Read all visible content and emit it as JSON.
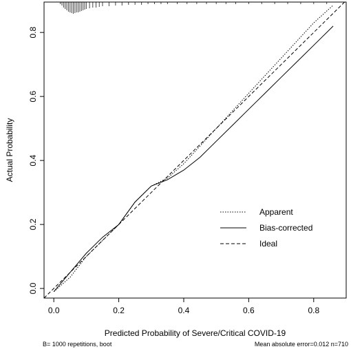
{
  "chart_data": {
    "type": "line",
    "xlabel": "Predicted Probability of Severe/Critical COVID-19",
    "ylabel": "Actual Probability",
    "xlim": [
      -0.03,
      0.9
    ],
    "ylim": [
      -0.03,
      0.895
    ],
    "x_ticks": [
      0.0,
      0.2,
      0.4,
      0.6,
      0.8
    ],
    "x_tick_labels": [
      "0.0",
      "0.2",
      "0.4",
      "0.6",
      "0.8"
    ],
    "y_ticks": [
      0.0,
      0.2,
      0.4,
      0.6,
      0.8
    ],
    "y_tick_labels": [
      "0.0",
      "0.2",
      "0.4",
      "0.6",
      "0.8"
    ],
    "legend_position": "bottom-right",
    "series": [
      {
        "name": "Apparent",
        "style": "dotted",
        "x": [
          0.0,
          0.05,
          0.1,
          0.15,
          0.2,
          0.25,
          0.3,
          0.35,
          0.4,
          0.45,
          0.5,
          0.55,
          0.6,
          0.65,
          0.7,
          0.75,
          0.8,
          0.86
        ],
        "y": [
          -0.01,
          0.035,
          0.1,
          0.15,
          0.2,
          0.27,
          0.32,
          0.345,
          0.39,
          0.445,
          0.5,
          0.555,
          0.61,
          0.665,
          0.72,
          0.775,
          0.83,
          0.885
        ]
      },
      {
        "name": "Bias-corrected",
        "style": "solid",
        "x": [
          0.0,
          0.05,
          0.1,
          0.15,
          0.2,
          0.25,
          0.3,
          0.35,
          0.4,
          0.45,
          0.5,
          0.55,
          0.6,
          0.65,
          0.7,
          0.75,
          0.8,
          0.86
        ],
        "y": [
          -0.01,
          0.05,
          0.11,
          0.16,
          0.2,
          0.27,
          0.32,
          0.34,
          0.37,
          0.41,
          0.46,
          0.51,
          0.56,
          0.61,
          0.66,
          0.71,
          0.76,
          0.82
        ]
      },
      {
        "name": "Ideal",
        "style": "dashed",
        "x": [
          -0.03,
          0.9
        ],
        "y": [
          -0.03,
          0.9
        ]
      }
    ],
    "rug_x": [
      0.02,
      0.025,
      0.03,
      0.035,
      0.04,
      0.045,
      0.05,
      0.055,
      0.06,
      0.065,
      0.07,
      0.075,
      0.08,
      0.085,
      0.09,
      0.095,
      0.1,
      0.11,
      0.12,
      0.13,
      0.14,
      0.15,
      0.17,
      0.19,
      0.21,
      0.23,
      0.25,
      0.27,
      0.29,
      0.31,
      0.33,
      0.35,
      0.38,
      0.41,
      0.44,
      0.47,
      0.5,
      0.53,
      0.56,
      0.6,
      0.64,
      0.68,
      0.72,
      0.76,
      0.8,
      0.84
    ],
    "rug_heights": [
      3,
      5,
      8,
      10,
      12,
      14,
      15,
      16,
      17,
      16,
      15,
      15,
      14,
      13,
      12,
      11,
      10,
      9,
      8,
      8,
      7,
      6,
      6,
      5,
      5,
      4,
      4,
      4,
      3,
      3,
      3,
      3,
      3,
      3,
      3,
      3,
      3,
      3,
      3,
      3,
      3,
      3,
      3,
      3,
      3,
      3
    ],
    "footer_left": "B= 1000 repetitions, boot",
    "footer_right": "Mean absolute error=0.012 n=710"
  }
}
